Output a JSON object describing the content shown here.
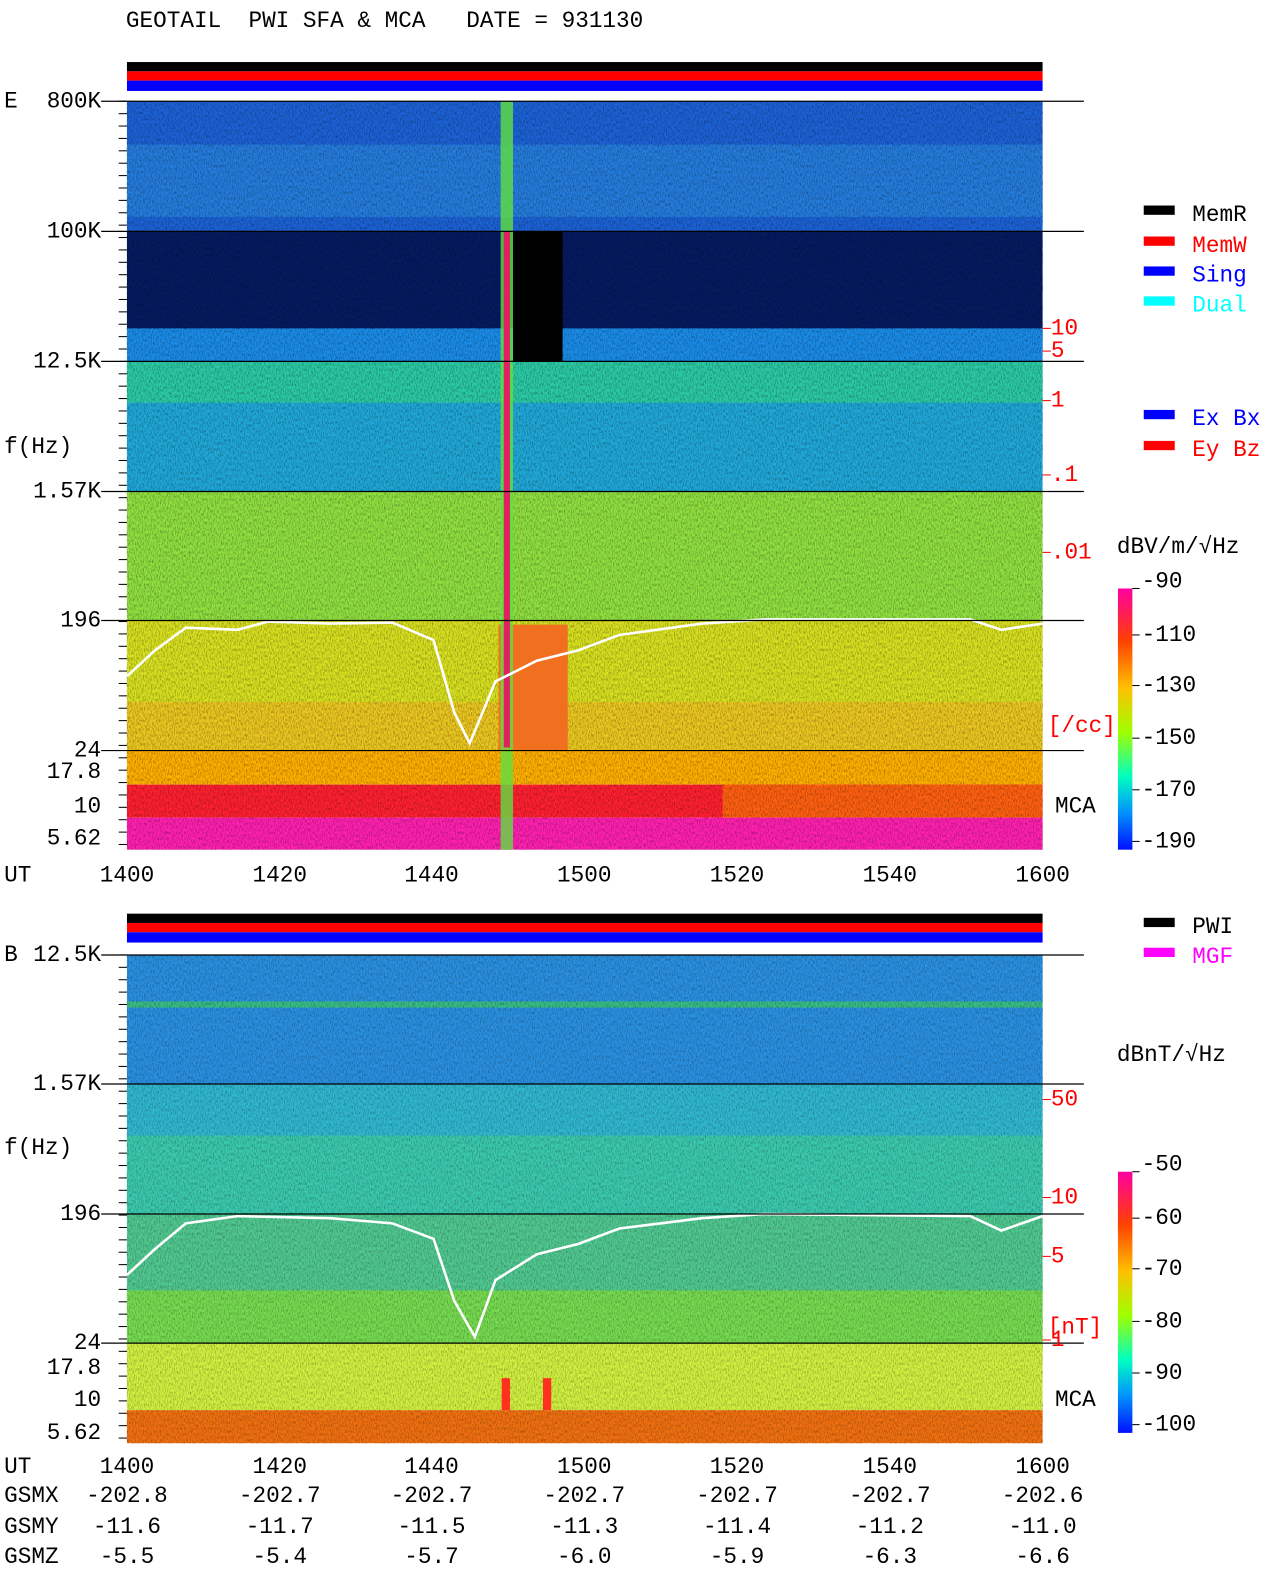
{
  "header": {
    "title": "GEOTAIL  PWI SFA & MCA   DATE = 931130"
  },
  "panels": [
    {
      "label": "E",
      "freq_labels": [
        "800K",
        "100K",
        "12.5K",
        "1.57K",
        "196",
        "24",
        "17.8",
        "10",
        "5.62"
      ],
      "axis_label": "f(Hz)",
      "time_axis_label": "UT",
      "time_labels": [
        "1400",
        "1420",
        "1440",
        "1500",
        "1520",
        "1540",
        "1600"
      ],
      "right_labels": [
        "10",
        "5",
        "1",
        ".1",
        ".01",
        "[/cc]"
      ],
      "mca_label": "MCA",
      "unit": "dBV/m/√Hz",
      "colorbar_labels": [
        "-90",
        "-110",
        "-130",
        "-150",
        "-170",
        "-190"
      ]
    },
    {
      "label": "B",
      "freq_labels": [
        "12.5K",
        "1.57K",
        "196",
        "24",
        "17.8",
        "10",
        "5.62"
      ],
      "axis_label": "f(Hz)",
      "time_axis_label": "UT",
      "time_labels": [
        "1400",
        "1420",
        "1440",
        "1500",
        "1520",
        "1540",
        "1600"
      ],
      "right_labels": [
        "50",
        "10",
        "5",
        "1",
        "[nT]"
      ],
      "mca_label": "MCA",
      "unit": "dBnT/√Hz",
      "colorbar_labels": [
        "-50",
        "-60",
        "-70",
        "-80",
        "-90",
        "-100"
      ]
    }
  ],
  "legend_e": [
    {
      "label": "MemR",
      "color": "#000000"
    },
    {
      "label": "MemW",
      "color": "#ff0000"
    },
    {
      "label": "Sing",
      "color": "#0000ff"
    },
    {
      "label": "Dual",
      "color": "#00ffff"
    }
  ],
  "legend_e2": [
    {
      "label": "Ex Bx",
      "color": "#0000ff"
    },
    {
      "label": "Ey Bz",
      "color": "#ff0000"
    }
  ],
  "legend_b": [
    {
      "label": "PWI",
      "color": "#000000"
    },
    {
      "label": "MGF",
      "color": "#ff00ff"
    }
  ],
  "orbit": {
    "rows": [
      {
        "name": "GSMX",
        "values": [
          "-202.8",
          "-202.7",
          "-202.7",
          "-202.7",
          "-202.7",
          "-202.7",
          "-202.6"
        ]
      },
      {
        "name": "GSMY",
        "values": [
          "-11.6",
          "-11.7",
          "-11.5",
          "-11.3",
          "-11.4",
          "-11.2",
          "-11.0"
        ]
      },
      {
        "name": "GSMZ",
        "values": [
          "-5.5",
          "-5.4",
          "-5.7",
          "-6.0",
          "-5.9",
          "-6.3",
          "-6.6"
        ]
      }
    ]
  }
}
